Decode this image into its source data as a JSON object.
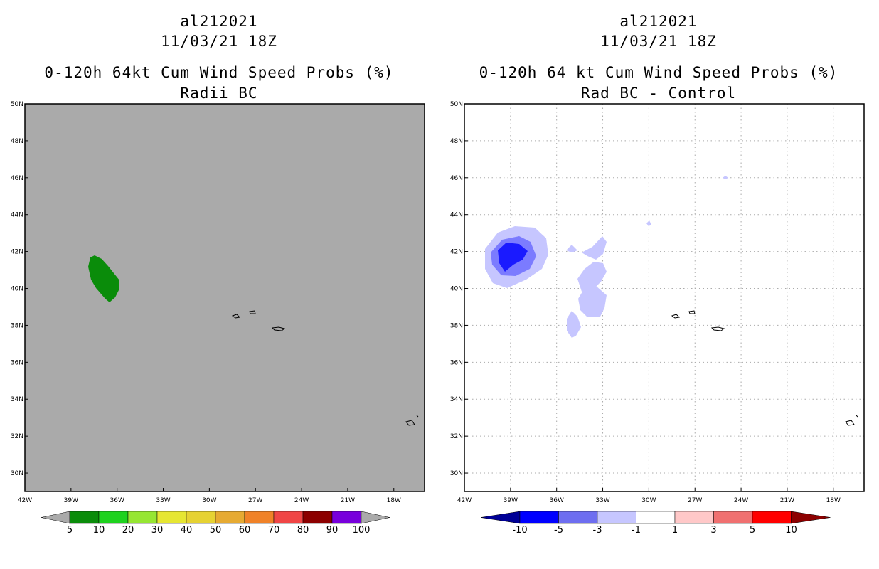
{
  "colors": {
    "map_background_left": "#aaaaaa",
    "map_background_right": "#ffffff",
    "prob_fill_green": "#0a8c0a",
    "diff_light": "#c6c6ff",
    "diff_mid": "#7b7bff",
    "diff_dark": "#1a1aff"
  },
  "chart_data": [
    {
      "type": "heatmap",
      "storm_id": "al212021",
      "datetime": "11/03/21 18Z",
      "title": "0-120h 64kt Cum Wind Speed Probs (%)",
      "subtitle": "Radii BC",
      "x_ticks": [
        "42W",
        "39W",
        "36W",
        "33W",
        "30W",
        "27W",
        "24W",
        "21W",
        "18W"
      ],
      "y_ticks": [
        "50N",
        "48N",
        "46N",
        "44N",
        "42N",
        "40N",
        "38N",
        "36N",
        "34N",
        "32N",
        "30N"
      ],
      "xlim": [
        -42,
        -16
      ],
      "ylim": [
        29,
        50
      ],
      "grid": false,
      "colorbar": {
        "labels": [
          "5",
          "10",
          "20",
          "30",
          "40",
          "50",
          "60",
          "70",
          "80",
          "90",
          "100"
        ],
        "colors": [
          "#0a8c0a",
          "#1ed21e",
          "#96e632",
          "#e6e632",
          "#e6d232",
          "#e6aa32",
          "#f08228",
          "#f04646",
          "#8c0000",
          "#7800dc"
        ]
      }
    },
    {
      "type": "heatmap",
      "storm_id": "al212021",
      "datetime": "11/03/21 18Z",
      "title": "0-120h 64 kt Cum Wind Speed Probs (%)",
      "subtitle": "Rad BC - Control",
      "x_ticks": [
        "42W",
        "39W",
        "36W",
        "33W",
        "30W",
        "27W",
        "24W",
        "21W",
        "18W"
      ],
      "y_ticks": [
        "50N",
        "48N",
        "46N",
        "44N",
        "42N",
        "40N",
        "38N",
        "36N",
        "34N",
        "32N",
        "30N"
      ],
      "xlim": [
        -42,
        -16
      ],
      "ylim": [
        29,
        50
      ],
      "grid": true,
      "colorbar": {
        "labels": [
          "-10",
          "-5",
          "-3",
          "-1",
          "1",
          "3",
          "5",
          "10"
        ],
        "colors": [
          "#000096",
          "#0000ff",
          "#6e6ef0",
          "#c6c6ff",
          "#ffffff",
          "#ffc8c8",
          "#f07070",
          "#ff0000",
          "#8c0000"
        ]
      }
    }
  ]
}
